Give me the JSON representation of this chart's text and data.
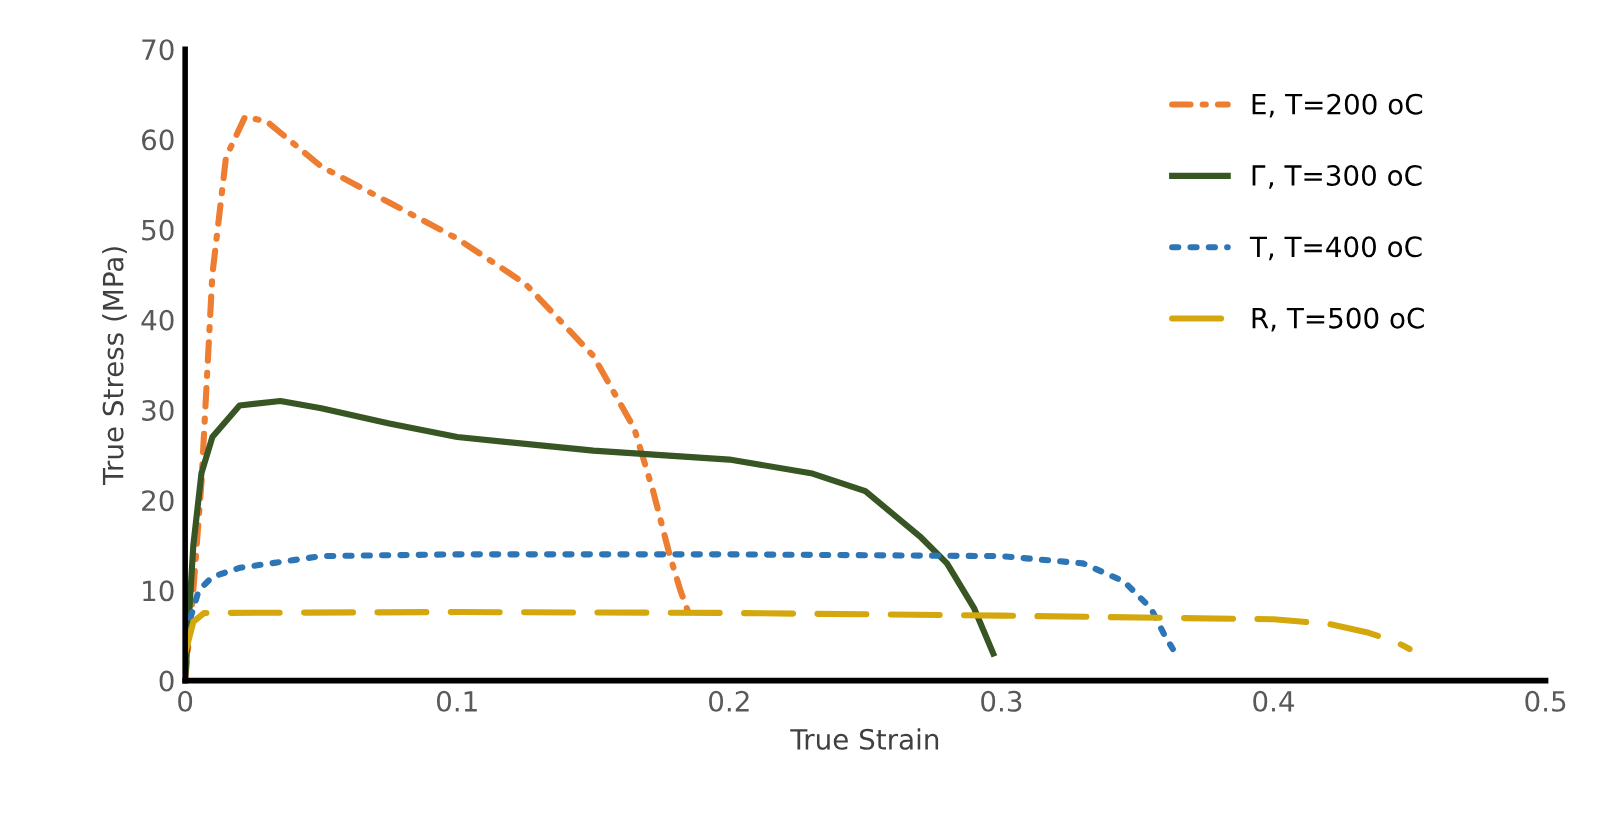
{
  "chart_data": {
    "type": "line",
    "xlabel": "True Strain",
    "ylabel": "True Stress (MPa)",
    "xlim": [
      0,
      0.5
    ],
    "xticks": [
      0,
      0.1,
      0.2,
      0.3,
      0.4,
      0.5
    ],
    "ylim": [
      0,
      70
    ],
    "yticks": [
      0,
      10,
      20,
      30,
      40,
      50,
      60,
      70
    ],
    "grid": false,
    "legend": "top right",
    "marker": "none",
    "series": [
      {
        "name": "E, T=200 oC",
        "color": "#ed7d31",
        "line_style": "dashdot",
        "x": [
          0,
          0.003,
          0.006,
          0.01,
          0.015,
          0.022,
          0.03,
          0.05,
          0.075,
          0.1,
          0.125,
          0.15,
          0.165,
          0.172,
          0.178,
          0.182,
          0.185
        ],
        "values": [
          0,
          10,
          22,
          45,
          58,
          62.5,
          62,
          57,
          53,
          49,
          44,
          36,
          28,
          21,
          14,
          10,
          7.5
        ]
      },
      {
        "name": "Г, T=300 oC",
        "color": "#375623",
        "line_style": "solid",
        "x": [
          0,
          0.003,
          0.006,
          0.01,
          0.02,
          0.035,
          0.05,
          0.075,
          0.1,
          0.15,
          0.2,
          0.23,
          0.25,
          0.27,
          0.28,
          0.29,
          0.297
        ],
        "values": [
          0,
          15,
          23,
          27,
          30.5,
          31,
          30.2,
          28.5,
          27,
          25.5,
          24.5,
          23,
          21,
          16,
          13,
          8,
          3
        ]
      },
      {
        "name": "T, T=400 oC",
        "color": "#2e75b6",
        "line_style": "dotted",
        "x": [
          0,
          0.005,
          0.01,
          0.02,
          0.05,
          0.1,
          0.2,
          0.3,
          0.33,
          0.345,
          0.355,
          0.36,
          0.363
        ],
        "values": [
          5,
          10,
          11.5,
          12.5,
          13.8,
          14,
          14,
          13.8,
          13,
          11,
          8,
          5,
          3.5
        ]
      },
      {
        "name": "R, T=500 oC",
        "color": "#d4a80c",
        "line_style": "dashed",
        "x": [
          0,
          0.003,
          0.007,
          0.1,
          0.2,
          0.3,
          0.4,
          0.42,
          0.435,
          0.445,
          0.45
        ],
        "values": [
          3,
          6.5,
          7.5,
          7.6,
          7.5,
          7.2,
          6.8,
          6.3,
          5.3,
          4.3,
          3.5
        ]
      }
    ]
  }
}
